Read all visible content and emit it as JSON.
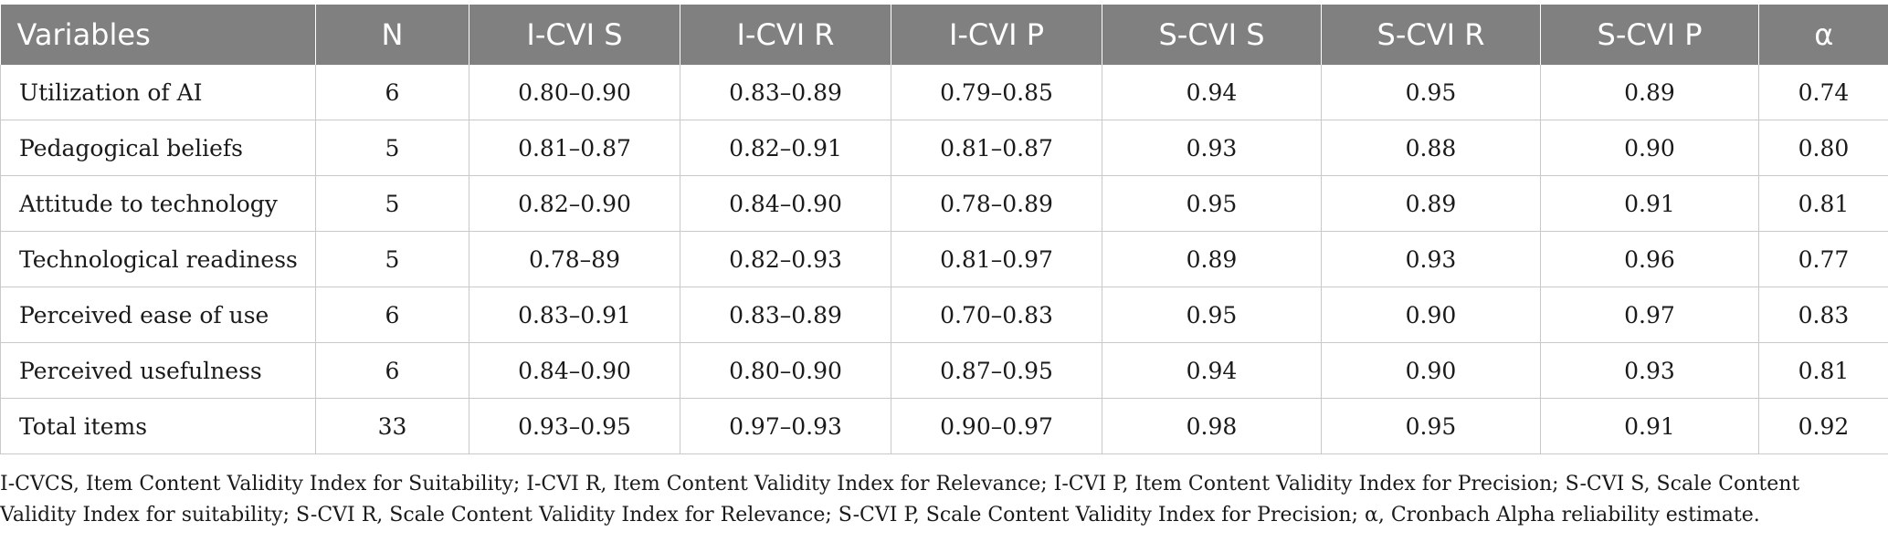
{
  "table": {
    "headers": [
      "Variables",
      "N",
      "I-CVI S",
      "I-CVI R",
      "I-CVI P",
      "S-CVI S",
      "S-CVI R",
      "S-CVI P",
      "α"
    ],
    "rows": [
      [
        "Utilization of AI",
        "6",
        "0.80–0.90",
        "0.83–0.89",
        "0.79–0.85",
        "0.94",
        "0.95",
        "0.89",
        "0.74"
      ],
      [
        "Pedagogical beliefs",
        "5",
        "0.81–0.87",
        "0.82–0.91",
        "0.81–0.87",
        "0.93",
        "0.88",
        "0.90",
        "0.80"
      ],
      [
        "Attitude to technology",
        "5",
        "0.82–0.90",
        "0.84–0.90",
        "0.78–0.89",
        "0.95",
        "0.89",
        "0.91",
        "0.81"
      ],
      [
        "Technological readiness",
        "5",
        "0.78–89",
        "0.82–0.93",
        "0.81–0.97",
        "0.89",
        "0.93",
        "0.96",
        "0.77"
      ],
      [
        "Perceived ease of use",
        "6",
        "0.83–0.91",
        "0.83–0.89",
        "0.70–0.83",
        "0.95",
        "0.90",
        "0.97",
        "0.83"
      ],
      [
        "Perceived usefulness",
        "6",
        "0.84–0.90",
        "0.80–0.90",
        "0.87–0.95",
        "0.94",
        "0.90",
        "0.93",
        "0.81"
      ],
      [
        "Total items",
        "33",
        "0.93–0.95",
        "0.97–0.93",
        "0.90–0.97",
        "0.98",
        "0.95",
        "0.91",
        "0.92"
      ]
    ]
  },
  "footnote": "I-CVCS, Item Content Validity Index for Suitability; I-CVI R, Item Content Validity Index for Relevance; I-CVI P, Item Content Validity Index for Precision; S-CVI S, Scale Content Validity Index for suitability; S-CVI R, Scale Content Validity Index for Relevance; S-CVI P, Scale Content Validity Index for Precision; α, Cronbach Alpha reliability estimate.",
  "colors": {
    "header_bg": "#7f807f",
    "header_text": "#ffffff",
    "grid": "#c9c9c9"
  }
}
